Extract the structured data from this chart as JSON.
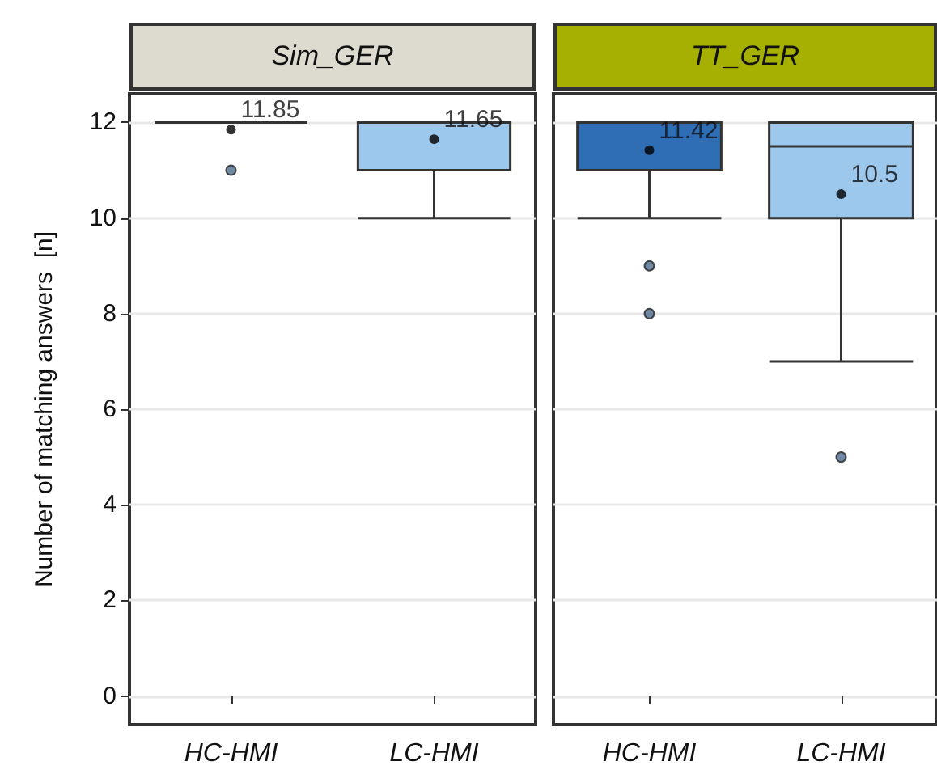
{
  "chart_data": [
    {
      "type": "box",
      "title": "Sim_GER",
      "ylabel": "Number of matching answers  [n]",
      "categories": [
        "HC-HMI",
        "LC-HMI"
      ],
      "colors": [
        "#333333",
        "#9dc8ee"
      ],
      "boxes": [
        {
          "low": 12,
          "q1": 12,
          "median": 12,
          "q3": 12,
          "high": 12,
          "mean": 11.85,
          "outliers": [
            11
          ]
        },
        {
          "low": 10,
          "q1": 11,
          "median": 12,
          "q3": 12,
          "high": 12,
          "mean": 11.65
        }
      ],
      "annotations": [
        "11.85",
        "11.65"
      ],
      "ylim": [
        -0.6,
        12.6
      ],
      "yticks": [
        0,
        2,
        4,
        6,
        8,
        10,
        12
      ],
      "grid": "y"
    },
    {
      "type": "box",
      "title": "TT_GER",
      "categories": [
        "HC-HMI",
        "LC-HMI"
      ],
      "colors": [
        "#2f6db5",
        "#9dc8ee"
      ],
      "boxes": [
        {
          "low": 10,
          "q1": 11,
          "median": 12,
          "q3": 12,
          "high": 12,
          "mean": 11.42,
          "outliers": [
            9,
            8
          ]
        },
        {
          "low": 7,
          "q1": 10,
          "median": 11.5,
          "q3": 12,
          "high": 12,
          "mean": 10.5,
          "outliers": [
            5
          ]
        }
      ],
      "annotations": [
        "11.42",
        "10.5"
      ],
      "ylim": [
        -0.6,
        12.6
      ],
      "yticks": [
        0,
        2,
        4,
        6,
        8,
        10,
        12
      ],
      "grid": "y",
      "tick_labels": "x"
    }
  ]
}
